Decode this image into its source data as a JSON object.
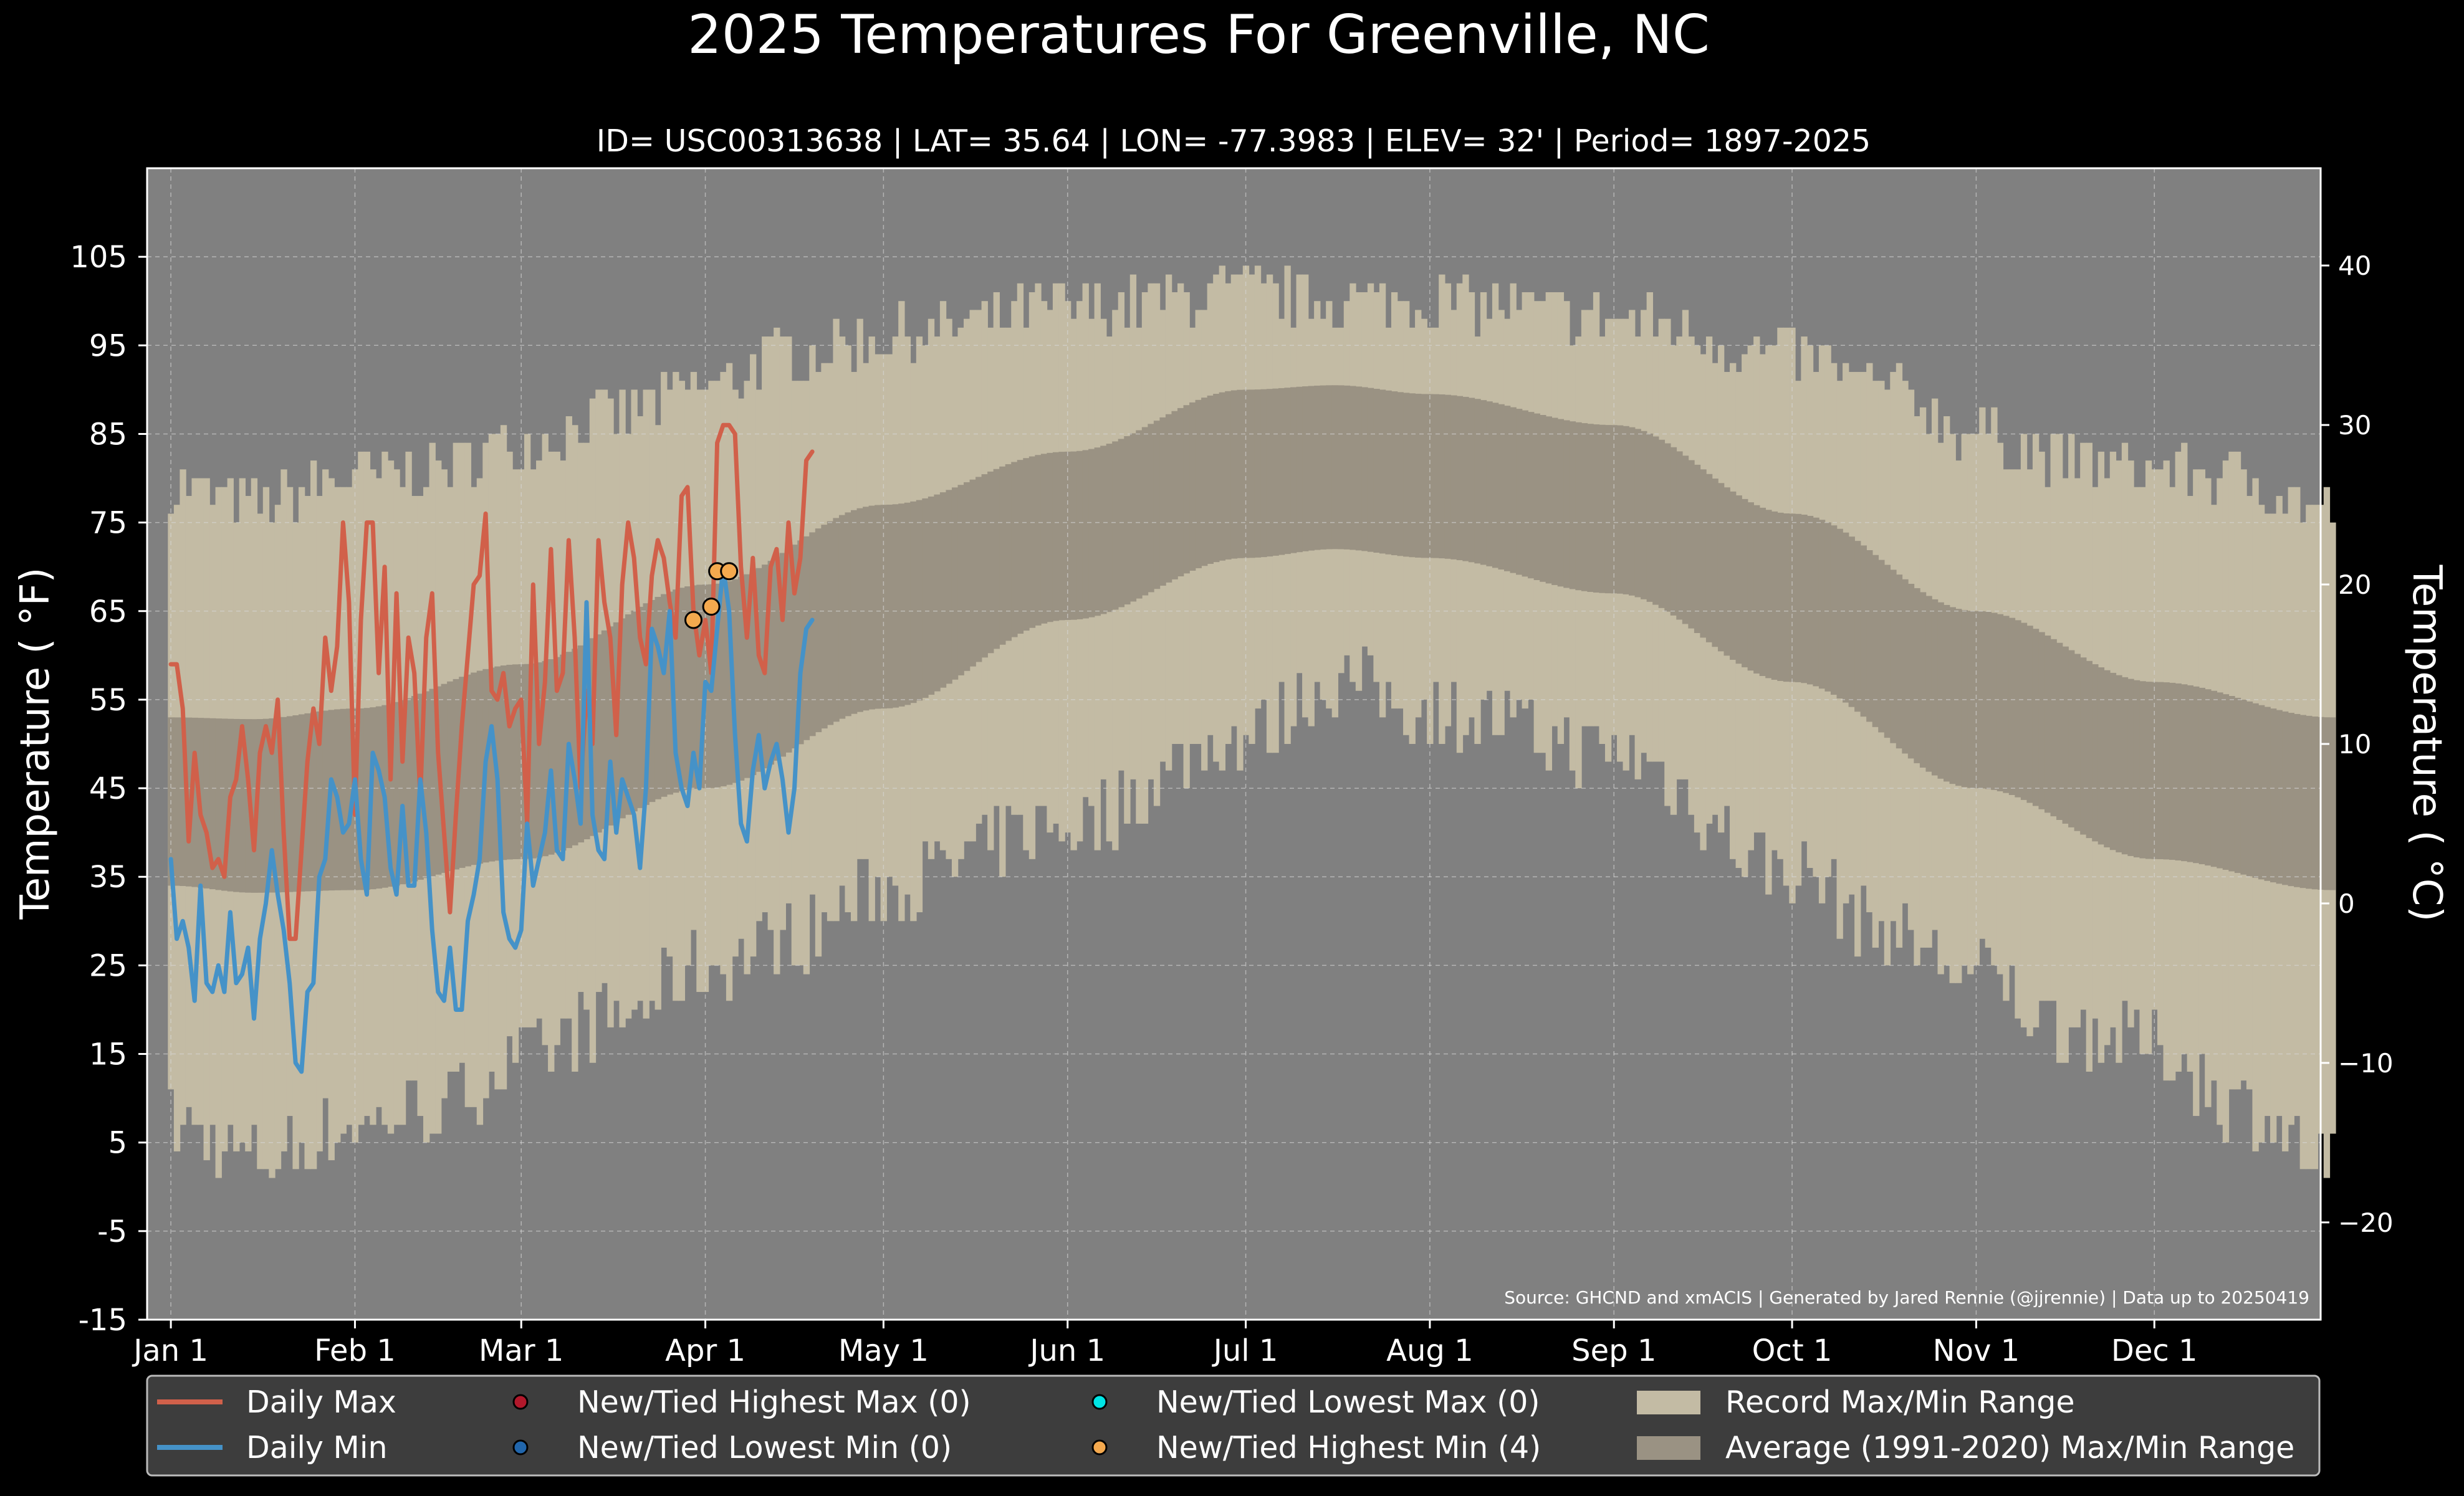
{
  "chart_data": {
    "type": "line",
    "title": "2025 Temperatures For Greenville, NC",
    "subtitle": "ID= USC00313638 | LAT= 35.64 | LON= -77.3983 | ELEV= 32' | Period= 1897-2025",
    "ylabel": "Temperature ( $^\\circ$F)",
    "ylabel_display": "Temperature ( °F)",
    "ylabel_right": "Temperature ( °C)",
    "ylim": [
      -15,
      115
    ],
    "xlim": [
      -3,
      363
    ],
    "ylim_right": [
      -26.1,
      46.1
    ],
    "yticks": [
      105,
      95,
      85,
      75,
      65,
      55,
      45,
      35,
      25,
      15,
      5,
      -5,
      -15
    ],
    "yticks_right": [
      40,
      30,
      20,
      10,
      0,
      -10,
      -20
    ],
    "yticks_right_labels": [
      "40",
      "30",
      "20",
      "10",
      "0",
      "−10",
      "−20"
    ],
    "x_ticks": [
      {
        "label": "Jan 1",
        "day": 1
      },
      {
        "label": "Feb 1",
        "day": 32
      },
      {
        "label": "Mar 1",
        "day": 60
      },
      {
        "label": "Apr 1",
        "day": 91
      },
      {
        "label": "May 1",
        "day": 121
      },
      {
        "label": "Jun 1",
        "day": 152
      },
      {
        "label": "Jul 1",
        "day": 182
      },
      {
        "label": "Aug 1",
        "day": 213
      },
      {
        "label": "Sep 1",
        "day": 244
      },
      {
        "label": "Oct 1",
        "day": 274
      },
      {
        "label": "Nov 1",
        "day": 305
      },
      {
        "label": "Dec 1",
        "day": 335
      }
    ],
    "grid": true,
    "source": "Source: GHCND and xmACIS | Generated by Jared Rennie (@jjrennie) | Data up to 20250419",
    "colors": {
      "background": "#000000",
      "plot_bg": "#808080",
      "record_range": "#c3bba4",
      "average_range": "#9a9283",
      "daily_max": "#d1604a",
      "daily_min": "#4592c8",
      "highest_max_marker": "#b2182b",
      "lowest_min_marker": "#2166ac",
      "lowest_max_marker": "#00e5e5",
      "highest_min_marker": "#f4a94e",
      "legend_bg": "#3d3d3d"
    },
    "legend": {
      "placement": "bottom",
      "items": [
        {
          "label": "Daily Max",
          "kind": "line",
          "color": "#d1604a"
        },
        {
          "label": "New/Tied Highest Max (0)",
          "kind": "marker",
          "color": "#b2182b"
        },
        {
          "label": "New/Tied Lowest Max (0)",
          "kind": "marker",
          "color": "#00e5e5"
        },
        {
          "label": "Record Max/Min Range",
          "kind": "patch",
          "color": "#c3bba4"
        },
        {
          "label": "Daily Min",
          "kind": "line",
          "color": "#4592c8"
        },
        {
          "label": "New/Tied Lowest Min (0)",
          "kind": "marker",
          "color": "#2166ac"
        },
        {
          "label": "New/Tied Highest Min (4)",
          "kind": "marker",
          "color": "#f4a94e"
        },
        {
          "label": "Average (1991-2020) Max/Min Range",
          "kind": "patch",
          "color": "#9a9283"
        }
      ]
    },
    "average_range_keypoints": {
      "day": [
        1,
        15,
        32,
        60,
        91,
        121,
        152,
        182,
        197,
        213,
        244,
        274,
        305,
        335,
        365
      ],
      "max": [
        53,
        52.8,
        54,
        59,
        68,
        77,
        83,
        90,
        90.5,
        89.5,
        86,
        76,
        65,
        57,
        53
      ],
      "min": [
        34,
        33.2,
        33.5,
        37,
        45,
        54,
        64,
        71,
        72,
        71,
        67,
        57,
        45,
        37,
        33.5
      ]
    },
    "record_range_keypoints": {
      "day": [
        1,
        15,
        32,
        45,
        60,
        75,
        91,
        105,
        121,
        152,
        182,
        197,
        213,
        244,
        274,
        290,
        305,
        320,
        335,
        350,
        365
      ],
      "max": [
        79,
        77,
        80,
        81,
        84,
        87,
        90,
        94,
        96,
        99,
        101,
        100,
        100,
        98,
        94,
        90,
        85,
        82,
        81,
        80,
        76
      ],
      "min": [
        7,
        3,
        7,
        9,
        14,
        19,
        25,
        28,
        34,
        41,
        51,
        57,
        54,
        49,
        36,
        29,
        24,
        18,
        16,
        9,
        2
      ]
    },
    "series": [
      {
        "name": "Daily Max",
        "color": "#d1604a",
        "x": [
          1,
          2,
          3,
          4,
          5,
          6,
          7,
          8,
          9,
          10,
          11,
          12,
          13,
          14,
          15,
          16,
          17,
          18,
          19,
          20,
          21,
          22,
          23,
          24,
          25,
          26,
          27,
          28,
          29,
          30,
          31,
          32,
          33,
          34,
          35,
          36,
          37,
          38,
          39,
          40,
          41,
          42,
          43,
          44,
          45,
          46,
          47,
          48,
          49,
          50,
          51,
          52,
          53,
          54,
          55,
          56,
          57,
          58,
          59,
          60,
          61,
          62,
          63,
          64,
          65,
          66,
          67,
          68,
          69,
          70,
          71,
          72,
          73,
          74,
          75,
          76,
          77,
          78,
          79,
          80,
          81,
          82,
          83,
          84,
          85,
          86,
          87,
          88,
          89,
          90,
          91,
          92,
          93,
          94,
          95,
          96,
          97,
          98,
          99,
          100,
          101,
          102,
          103,
          104,
          105,
          106,
          107,
          108,
          109
        ],
        "values": [
          59,
          59,
          54,
          39,
          49,
          42,
          40,
          36,
          37,
          35,
          44,
          46,
          52,
          46,
          38,
          49,
          52,
          49,
          55,
          40,
          28,
          28,
          38,
          48,
          54,
          50,
          62,
          56,
          61,
          75,
          66,
          42,
          64,
          75,
          75,
          58,
          70,
          46,
          67,
          48,
          62,
          58,
          44,
          62,
          67,
          49,
          40,
          31,
          42,
          52,
          60,
          68,
          69,
          76,
          56,
          55,
          58,
          52,
          54,
          55,
          41,
          68,
          50,
          57,
          72,
          56,
          58,
          73,
          62,
          45,
          56,
          50,
          73,
          66,
          62,
          51,
          68,
          75,
          71,
          62,
          59,
          69,
          73,
          71,
          66,
          62,
          78,
          79,
          65,
          60,
          64,
          58,
          84,
          86,
          86,
          85,
          70,
          62,
          71,
          60,
          58,
          70,
          72,
          64,
          75,
          67,
          71,
          82,
          83
        ]
      },
      {
        "name": "Daily Min",
        "color": "#4592c8",
        "x": [
          1,
          2,
          3,
          4,
          5,
          6,
          7,
          8,
          9,
          10,
          11,
          12,
          13,
          14,
          15,
          16,
          17,
          18,
          19,
          20,
          21,
          22,
          23,
          24,
          25,
          26,
          27,
          28,
          29,
          30,
          31,
          32,
          33,
          34,
          35,
          36,
          37,
          38,
          39,
          40,
          41,
          42,
          43,
          44,
          45,
          46,
          47,
          48,
          49,
          50,
          51,
          52,
          53,
          54,
          55,
          56,
          57,
          58,
          59,
          60,
          61,
          62,
          63,
          64,
          65,
          66,
          67,
          68,
          69,
          70,
          71,
          72,
          73,
          74,
          75,
          76,
          77,
          78,
          79,
          80,
          81,
          82,
          83,
          84,
          85,
          86,
          87,
          88,
          89,
          90,
          91,
          92,
          93,
          94,
          95,
          96,
          97,
          98,
          99,
          100,
          101,
          102,
          103,
          104,
          105,
          106,
          107,
          108,
          109
        ],
        "values": [
          37,
          28,
          30,
          27,
          21,
          34,
          23,
          22,
          25,
          22,
          31,
          23,
          24,
          27,
          19,
          28,
          32,
          38,
          33,
          29,
          23,
          14,
          13,
          22,
          23,
          35,
          37,
          46,
          44,
          40,
          41,
          46,
          37,
          33,
          49,
          47,
          44,
          36,
          33,
          43,
          34,
          34,
          46,
          40,
          29,
          22,
          21,
          27,
          20,
          20,
          30,
          33,
          37,
          48,
          52,
          46,
          31,
          28,
          27,
          29,
          41,
          34,
          37,
          40,
          47,
          38,
          37,
          50,
          46,
          41,
          66,
          42,
          38,
          37,
          48,
          40,
          46,
          44,
          42,
          36,
          45,
          63,
          61,
          58,
          65,
          49,
          45,
          43,
          49,
          45,
          57,
          56,
          63,
          70,
          65,
          51,
          41,
          39,
          47,
          51,
          45,
          48,
          50,
          46,
          40,
          45,
          58,
          63,
          64
        ]
      },
      {
        "name": "New/Tied Highest Min (4)",
        "kind": "markers",
        "color": "#f4a94e",
        "x": [
          89,
          92,
          93,
          95
        ],
        "values": [
          64,
          65.5,
          69.5,
          69.5
        ]
      }
    ]
  }
}
